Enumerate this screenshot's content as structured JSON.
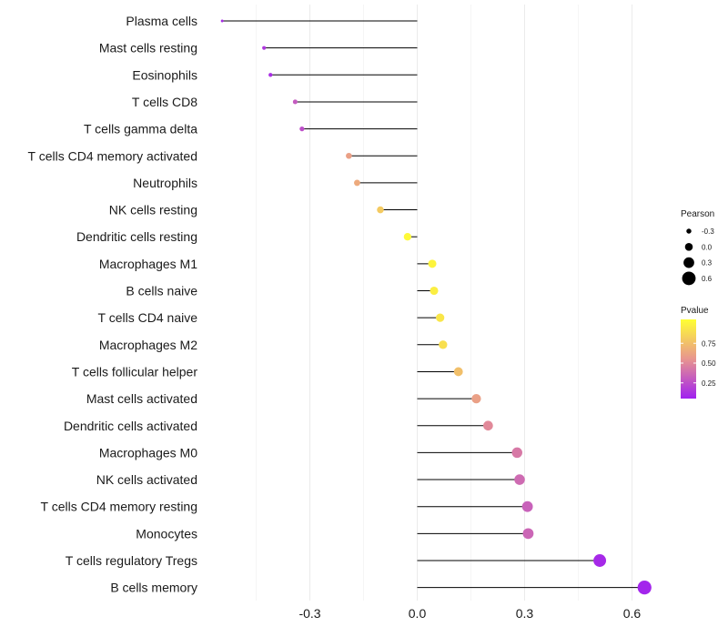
{
  "chart_data": {
    "type": "lollipop",
    "title": "",
    "xlabel": "",
    "ylabel": "",
    "xlim": [
      -0.76,
      0.71
    ],
    "xticks": [
      -0.3,
      0.0,
      0.3,
      0.6
    ],
    "xtick_labels": [
      "-0.3",
      "0.0",
      "0.3",
      "0.6"
    ],
    "grid": true,
    "categories": [
      "Plasma cells",
      "Mast cells resting",
      "Eosinophils",
      "T cells CD8",
      "T cells gamma delta",
      "T cells CD4 memory activated",
      "Neutrophils",
      "NK cells resting",
      "Dendritic cells resting",
      "Macrophages M1",
      "B cells naive",
      "T cells CD4 naive",
      "Macrophages M2",
      "T cells follicular helper",
      "Mast cells activated",
      "Dendritic cells activated",
      "Macrophages M0",
      "NK cells activated",
      "T cells CD4 memory resting",
      "Monocytes",
      "T cells regulatory  Tregs",
      "B cells memory"
    ],
    "pearson": [
      -0.545,
      -0.428,
      -0.41,
      -0.341,
      -0.322,
      -0.191,
      -0.168,
      -0.103,
      -0.027,
      0.042,
      0.047,
      0.064,
      0.072,
      0.115,
      0.165,
      0.198,
      0.279,
      0.286,
      0.308,
      0.31,
      0.51,
      0.635
    ],
    "pvalue": [
      0.05,
      0.1,
      0.06,
      0.25,
      0.2,
      0.55,
      0.6,
      0.75,
      0.97,
      0.95,
      0.92,
      0.88,
      0.85,
      0.7,
      0.55,
      0.45,
      0.38,
      0.32,
      0.28,
      0.3,
      0.04,
      0.02
    ],
    "legend": {
      "size": {
        "title": "Pearson",
        "breaks": [
          -0.3,
          0.0,
          0.3,
          0.6
        ],
        "labels": [
          "-0.3",
          "0.0",
          "0.3",
          "0.6"
        ]
      },
      "color": {
        "title": "Pvalue",
        "breaks": [
          0.75,
          0.5,
          0.25
        ],
        "labels": [
          "0.75",
          "0.50",
          "0.25"
        ],
        "range": [
          0.0,
          1.0
        ],
        "low_color": "#a020f0",
        "mid_color": "#e8958f",
        "high_color": "#ffff33"
      }
    }
  }
}
